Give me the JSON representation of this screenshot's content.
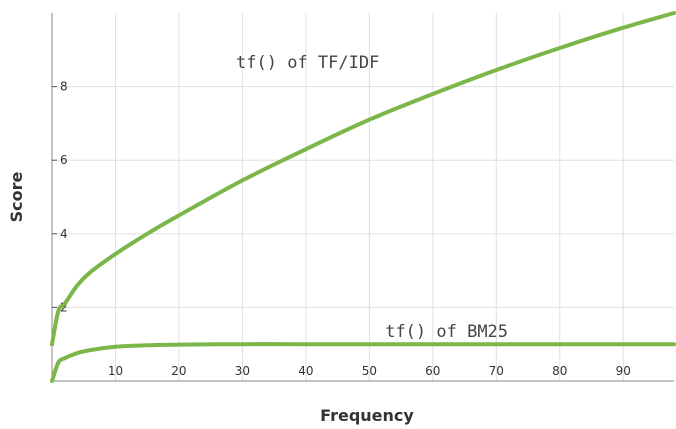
{
  "chart_data": {
    "type": "line",
    "xlabel": "Frequency",
    "ylabel": "Score",
    "xlim": [
      0,
      98
    ],
    "ylim": [
      0,
      10
    ],
    "x_ticks": [
      10,
      20,
      30,
      40,
      50,
      60,
      70,
      80,
      90
    ],
    "y_ticks": [
      2,
      4,
      6,
      8
    ],
    "grid": true,
    "line_color": "#7ab648",
    "grid_color": "#e0e0e0",
    "series": [
      {
        "name": "tf() of TF/IDF",
        "x": [
          0,
          1,
          2,
          4,
          6,
          10,
          15,
          20,
          30,
          40,
          50,
          60,
          70,
          80,
          90,
          98
        ],
        "y": [
          1,
          1.9,
          2.1,
          2.6,
          2.95,
          3.45,
          4.0,
          4.5,
          5.45,
          6.3,
          7.1,
          7.8,
          8.45,
          9.05,
          9.6,
          10
        ]
      },
      {
        "name": "tf() of BM25",
        "x": [
          0,
          1,
          2,
          4,
          6,
          10,
          15,
          20,
          30,
          40,
          50,
          60,
          70,
          80,
          90,
          98
        ],
        "y": [
          0,
          0.5,
          0.62,
          0.76,
          0.84,
          0.93,
          0.97,
          0.99,
          1,
          1,
          1,
          1,
          1,
          1,
          1,
          1
        ]
      }
    ],
    "annotations": [
      {
        "text": "tf() of TF/IDF",
        "x": 29,
        "y": 8.5
      },
      {
        "text": "tf() of BM25",
        "x": 52.5,
        "y": 1.2
      }
    ]
  }
}
